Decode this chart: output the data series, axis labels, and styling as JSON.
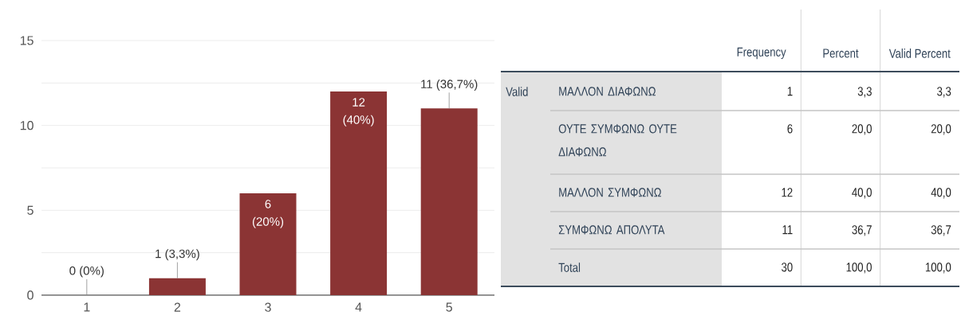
{
  "chart_data": [
    {
      "type": "bar",
      "categories": [
        "1",
        "2",
        "3",
        "4",
        "5"
      ],
      "values": [
        0,
        1,
        6,
        12,
        11
      ],
      "color": "#8b3434",
      "value_labels": [
        "0 (0%)",
        "1 (3,3%)",
        "6 (20%)",
        "12 (40%)",
        "11 (36,7%)"
      ],
      "ylim": [
        0,
        15
      ],
      "yticks": [
        0,
        {
          "value": 2.5,
          "label": null
        },
        5,
        {
          "value": 7.5,
          "label": null
        },
        10,
        {
          "value": 12.5,
          "label": null
        },
        15
      ],
      "grid": "y"
    },
    {
      "type": "other",
      "ylabel": "Valid",
      "categories": [
        "ΜΑΛΛΟΝ ΔΙΑΦΩΝΩ",
        "ΟΥΤΕ ΣΥΜΦΩΝΩ ΟΥΤΕ ΔΙΑΦΩΝΩ",
        "ΜΑΛΛΟΝ ΣΥΜΦΩΝΩ",
        "ΣΥΜΦΩΝΩ ΑΠΟΛΥΤΑ",
        "Total"
      ],
      "data_labels": true,
      "series": [
        {
          "name": "Frequency",
          "values": [
            1,
            6,
            12,
            11,
            30
          ]
        },
        {
          "name": "Percent",
          "values": [
            3.3,
            20.0,
            40.0,
            36.7,
            100.0
          ],
          "value_labels": [
            "3,3",
            "20,0",
            "40,0",
            "36,7",
            "100,0"
          ]
        },
        {
          "name": "Valid Percent",
          "values": [
            3.3,
            20.0,
            40.0,
            36.7,
            100.0
          ],
          "value_labels": [
            "3,3",
            "20,0",
            "40,0",
            "36,7",
            "100,0"
          ]
        }
      ]
    }
  ]
}
